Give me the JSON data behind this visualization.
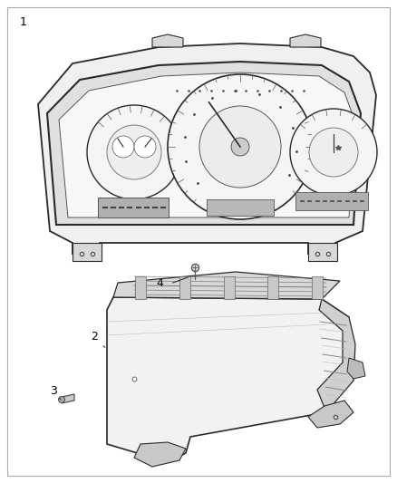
{
  "background_color": "#ffffff",
  "border_color": "#888888",
  "label_color": "#000000",
  "line_color": "#333333",
  "font_size": 9,
  "fig_width": 4.38,
  "fig_height": 5.33,
  "dpi": 100
}
